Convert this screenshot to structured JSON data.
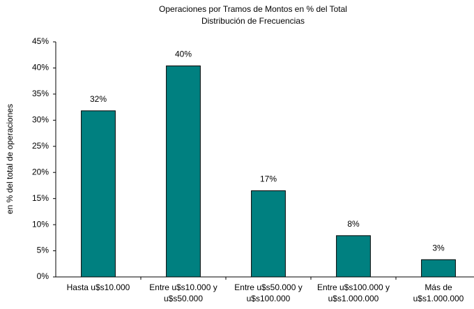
{
  "chart_data": {
    "type": "bar",
    "title": "Operaciones por Tramos de Montos en % del Total",
    "subtitle": "Distribución de Frecuencias",
    "y_label": "en % del total de operaciones",
    "categories": [
      [
        "Hasta u$s10.000"
      ],
      [
        "Entre u$s10.000 y",
        "u$s50.000"
      ],
      [
        "Entre u$s50.000 y",
        "u$s100.000"
      ],
      [
        "Entre u$s100.000 y",
        "u$s1.000.000"
      ],
      [
        "Más de",
        "u$s1.000.000"
      ]
    ],
    "values": [
      31.8,
      40.4,
      16.5,
      7.9,
      3.3
    ],
    "value_labels": [
      "32%",
      "40%",
      "17%",
      "8%",
      "3%"
    ],
    "color": "#008080",
    "ylim": [
      0,
      45
    ],
    "yticks": [
      {
        "value": 0,
        "label": "0%"
      },
      {
        "value": 5,
        "label": "5%"
      },
      {
        "value": 10,
        "label": "10%"
      },
      {
        "value": 15,
        "label": "15%"
      },
      {
        "value": 20,
        "label": "20%"
      },
      {
        "value": 25,
        "label": "25%"
      },
      {
        "value": 30,
        "label": "30%"
      },
      {
        "value": 35,
        "label": "35%"
      },
      {
        "value": 40,
        "label": "40%"
      },
      {
        "value": 45,
        "label": "45%"
      }
    ],
    "grid": false
  }
}
